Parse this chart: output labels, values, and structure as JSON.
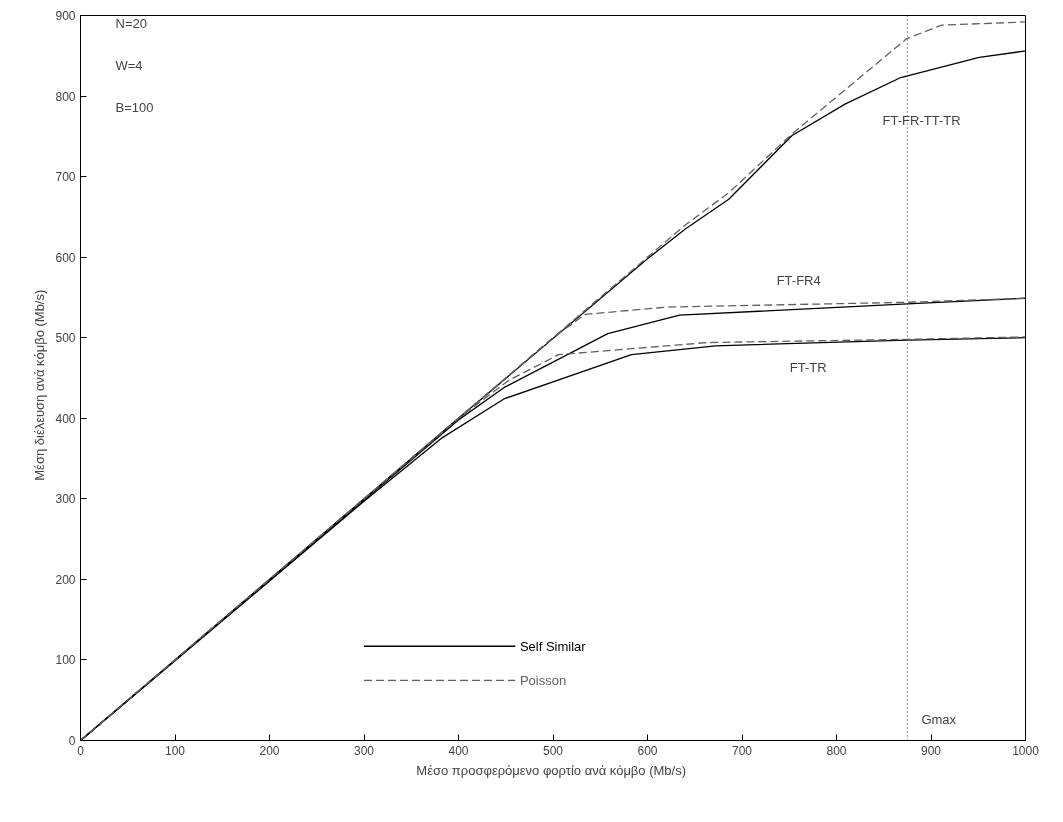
{
  "chart_data": {
    "type": "line",
    "xlabel": "Μέσο προσφερόμενο φορτίο ανά κόμβο  (Mb/s)",
    "ylabel": "Μέση διέλευση ανά κόμβο     (Mb/s)",
    "xlim": [
      0,
      1000
    ],
    "ylim": [
      0,
      900
    ],
    "xticks": [
      0,
      100,
      200,
      300,
      400,
      500,
      600,
      700,
      800,
      900,
      1000
    ],
    "yticks": [
      0,
      100,
      200,
      300,
      400,
      500,
      600,
      700,
      800,
      900
    ],
    "grid": false,
    "legend": "bottom",
    "marker": "none",
    "series": [
      {
        "name": "Self Similar",
        "color": "#000000",
        "line_style": "solid",
        "x": [
          0,
          400,
          600,
          640,
          686,
          753,
          809,
          868,
          951,
          1000
        ],
        "values": [
          0,
          400,
          598,
          635,
          672,
          751,
          790,
          823,
          848,
          856
        ]
      },
      {
        "name": "Poisson",
        "color": "#606060",
        "line_style": "dashed",
        "x": [
          0,
          640,
          686,
          753,
          874,
          911,
          1000
        ],
        "values": [
          0,
          640,
          680,
          753,
          871,
          888,
          892
        ]
      },
      {
        "color": "#000000",
        "line_style": "solid",
        "x": [
          0,
          400,
          448,
          558,
          634,
          875,
          1000
        ],
        "values": [
          0,
          398,
          438,
          505,
          528,
          542,
          549
        ]
      },
      {
        "color": "#606060",
        "line_style": "dashed",
        "x": [
          0,
          500,
          534,
          620,
          875,
          1000
        ],
        "values": [
          0,
          500,
          529,
          538,
          544,
          549
        ]
      },
      {
        "color": "#000000",
        "line_style": "solid",
        "x": [
          0,
          300,
          383,
          448,
          583,
          672,
          875,
          1000
        ],
        "values": [
          0,
          297,
          376,
          424,
          479,
          490,
          497,
          500
        ]
      },
      {
        "color": "#606060",
        "line_style": "dashed",
        "x": [
          0,
          400,
          453,
          506,
          663,
          875,
          1000
        ],
        "values": [
          0,
          400,
          447,
          479,
          494,
          498,
          501
        ]
      }
    ],
    "ref_lines": [
      {
        "axis": "x",
        "value": 875,
        "label": "Gmax",
        "line_style": "dotted",
        "color": "#404040"
      }
    ],
    "annotations": [
      "N=20",
      "W=4",
      "B=100",
      "FT-FR-TT-TR",
      "FT-FR4",
      "FT-TR"
    ]
  }
}
